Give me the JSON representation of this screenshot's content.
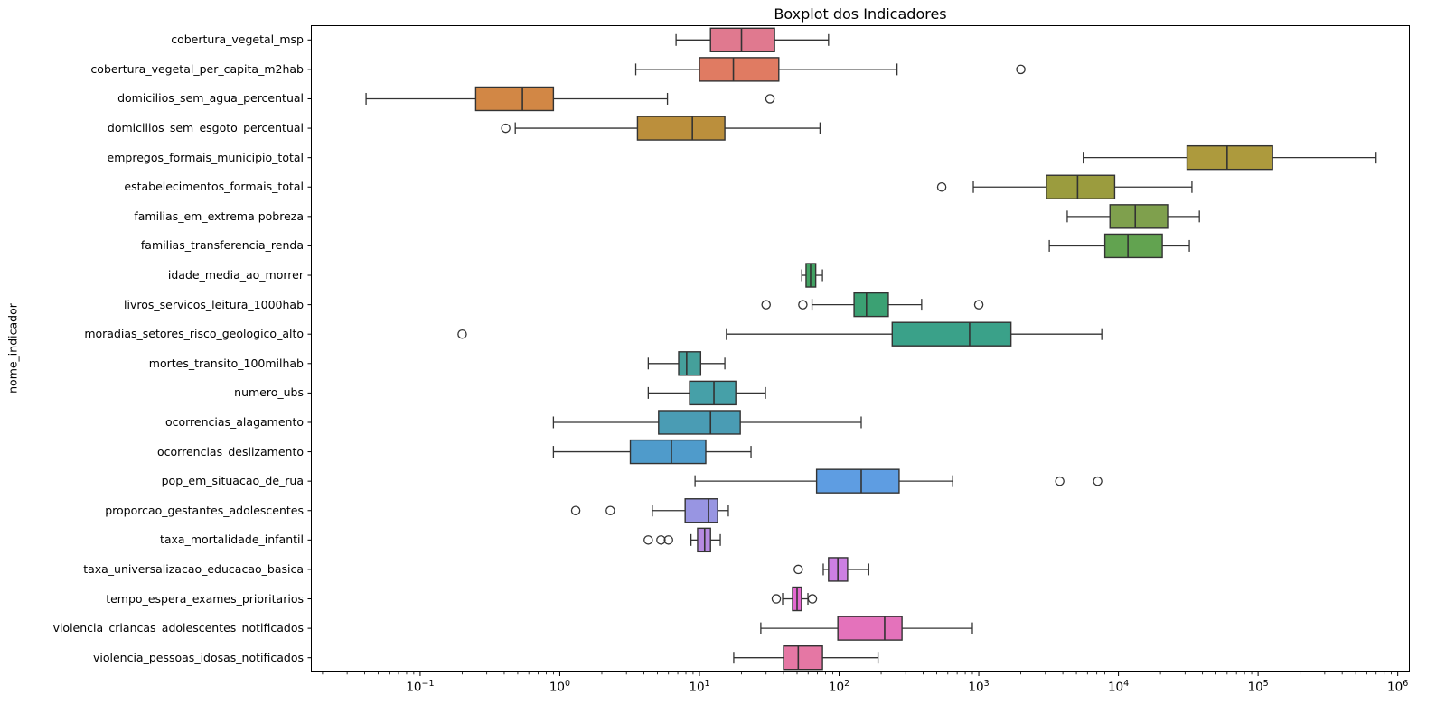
{
  "chart_data": {
    "type": "boxplot",
    "title": "Boxplot dos Indicadores",
    "ylabel": "nome_indicador",
    "xlabel": "",
    "xscale": "log",
    "xlim": [
      0.0165,
      1220000
    ],
    "grid": false,
    "orientation": "horizontal",
    "xticks": [
      {
        "base": "10",
        "exp": "-1"
      },
      {
        "base": "10",
        "exp": "0"
      },
      {
        "base": "10",
        "exp": "1"
      },
      {
        "base": "10",
        "exp": "2"
      },
      {
        "base": "10",
        "exp": "3"
      },
      {
        "base": "10",
        "exp": "4"
      },
      {
        "base": "10",
        "exp": "5"
      },
      {
        "base": "10",
        "exp": "6"
      }
    ],
    "series": [
      {
        "label": "cobertura_vegetal_msp",
        "color": "#e0798f",
        "whisker_low": 6.8,
        "q1": 12,
        "median": 20,
        "q3": 34.5,
        "whisker_high": 84,
        "outliers": []
      },
      {
        "label": "cobertura_vegetal_per_capita_m2hab",
        "color": "#e07b62",
        "whisker_low": 3.5,
        "q1": 10,
        "median": 17.5,
        "q3": 37,
        "whisker_high": 260,
        "outliers": [
          2000
        ]
      },
      {
        "label": "domicilios_sem_agua_percentual",
        "color": "#d28745",
        "whisker_low": 0.041,
        "q1": 0.25,
        "median": 0.54,
        "q3": 0.9,
        "whisker_high": 5.9,
        "outliers": [
          32
        ]
      },
      {
        "label": "domicilios_sem_esgoto_percentual",
        "color": "#bb8f3c",
        "whisker_low": 0.48,
        "q1": 3.6,
        "median": 8.9,
        "q3": 15.2,
        "whisker_high": 73,
        "outliers": [
          0.41
        ]
      },
      {
        "label": "empregos_formais_municipio_total",
        "color": "#ad9a3d",
        "whisker_low": 5600,
        "q1": 31000,
        "median": 60000,
        "q3": 127000,
        "whisker_high": 700000,
        "outliers": []
      },
      {
        "label": "estabelecimentos_formais_total",
        "color": "#9b9c3e",
        "whisker_low": 914,
        "q1": 3050,
        "median": 5100,
        "q3": 9400,
        "whisker_high": 33600,
        "outliers": [
          543
        ]
      },
      {
        "label": "familias_em_extrema pobreza",
        "color": "#7fa04d",
        "whisker_low": 4300,
        "q1": 8700,
        "median": 13200,
        "q3": 22500,
        "whisker_high": 38000,
        "outliers": []
      },
      {
        "label": "familias_transferencia_renda",
        "color": "#62a350",
        "whisker_low": 3200,
        "q1": 8000,
        "median": 11700,
        "q3": 20600,
        "whisker_high": 32200,
        "outliers": []
      },
      {
        "label": "idade_media_ao_morrer",
        "color": "#42a263",
        "whisker_low": 54,
        "q1": 58,
        "median": 62.5,
        "q3": 68,
        "whisker_high": 76,
        "outliers": []
      },
      {
        "label": "livros_servicos_leitura_1000hab",
        "color": "#3ba173",
        "whisker_low": 64,
        "q1": 128,
        "median": 157,
        "q3": 225,
        "whisker_high": 390,
        "outliers": [
          30,
          55,
          1000
        ]
      },
      {
        "label": "moradias_setores_risco_geologico_alto",
        "color": "#3aa189",
        "whisker_low": 15.6,
        "q1": 240,
        "median": 860,
        "q3": 1700,
        "whisker_high": 7600,
        "outliers": [
          0.2
        ]
      },
      {
        "label": "mortes_transito_100milhab",
        "color": "#45a09b",
        "whisker_low": 4.3,
        "q1": 7.1,
        "median": 8.1,
        "q3": 10.2,
        "whisker_high": 15.2,
        "outliers": []
      },
      {
        "label": "numero_ubs",
        "color": "#46a0a8",
        "whisker_low": 4.3,
        "q1": 8.5,
        "median": 12.7,
        "q3": 18.2,
        "whisker_high": 29.7,
        "outliers": []
      },
      {
        "label": "ocorrencias_alagamento",
        "color": "#4a9cb4",
        "whisker_low": 0.9,
        "q1": 5.1,
        "median": 12,
        "q3": 19.6,
        "whisker_high": 144,
        "outliers": []
      },
      {
        "label": "ocorrencias_deslizamento",
        "color": "#4f9bcb",
        "whisker_low": 0.9,
        "q1": 3.2,
        "median": 6.3,
        "q3": 11.1,
        "whisker_high": 23.4,
        "outliers": []
      },
      {
        "label": "pop_em_situacao_de_rua",
        "color": "#5e9de2",
        "whisker_low": 9.3,
        "q1": 69,
        "median": 144,
        "q3": 269,
        "whisker_high": 650,
        "outliers": [
          3800,
          7100
        ]
      },
      {
        "label": "proporcao_gestantes_adolescentes",
        "color": "#9895e2",
        "whisker_low": 4.6,
        "q1": 7.9,
        "median": 11.6,
        "q3": 13.5,
        "whisker_high": 16.1,
        "outliers": [
          1.3,
          2.3
        ]
      },
      {
        "label": "taxa_mortalidade_infantil",
        "color": "#b78ae1",
        "whisker_low": 8.7,
        "q1": 9.7,
        "median": 10.9,
        "q3": 12,
        "whisker_high": 14.1,
        "outliers": [
          4.3,
          5.3,
          6.0
        ]
      },
      {
        "label": "taxa_universalizacao_educacao_basica",
        "color": "#cc7fe2",
        "whisker_low": 77,
        "q1": 84,
        "median": 98,
        "q3": 115,
        "whisker_high": 163,
        "outliers": [
          51
        ]
      },
      {
        "label": "tempo_espera_exames_prioritarios",
        "color": "#e468d0",
        "whisker_low": 39.4,
        "q1": 46.4,
        "median": 50,
        "q3": 53.8,
        "whisker_high": 59.8,
        "outliers": [
          35.5,
          64.4
        ]
      },
      {
        "label": "violencia_criancas_adolescentes_notificados",
        "color": "#e472bb",
        "whisker_low": 27.5,
        "q1": 98,
        "median": 212,
        "q3": 282,
        "whisker_high": 900,
        "outliers": []
      },
      {
        "label": "violencia_pessoas_idosas_notificados",
        "color": "#e577a4",
        "whisker_low": 17.6,
        "q1": 40,
        "median": 51,
        "q3": 76,
        "whisker_high": 190,
        "outliers": []
      }
    ]
  },
  "colors": {
    "box_edge": "#333333",
    "axis": "#000000",
    "background": "#ffffff"
  }
}
